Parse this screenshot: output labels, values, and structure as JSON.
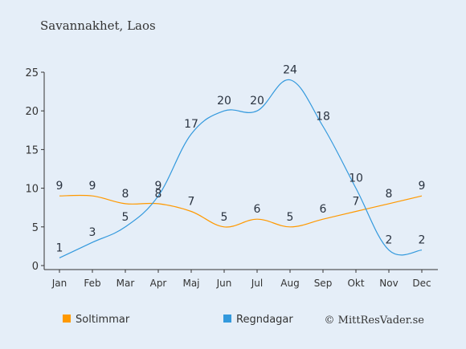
{
  "title": "Savannakhet, Laos",
  "credit": "© MittResVader.se",
  "colors": {
    "background": "#e5eef8",
    "sun": "#ff9900",
    "rain": "#3399dd",
    "axis": "#333333",
    "text": "#333333"
  },
  "chart_data": {
    "type": "line",
    "categories": [
      "Jan",
      "Feb",
      "Mar",
      "Apr",
      "Maj",
      "Jun",
      "Jul",
      "Aug",
      "Sep",
      "Okt",
      "Nov",
      "Dec"
    ],
    "series": [
      {
        "name": "Soltimmar",
        "color": "#ff9900",
        "values": [
          9,
          9,
          8,
          8,
          7,
          5,
          6,
          5,
          6,
          7,
          8,
          9
        ]
      },
      {
        "name": "Regndagar",
        "color": "#3399dd",
        "values": [
          1,
          3,
          5,
          9,
          17,
          20,
          20,
          24,
          18,
          10,
          2,
          2
        ]
      }
    ],
    "ylim": [
      0,
      25
    ],
    "yticks": [
      0,
      5,
      10,
      15,
      20,
      25
    ],
    "grid": false,
    "legend": "bottom-left"
  }
}
